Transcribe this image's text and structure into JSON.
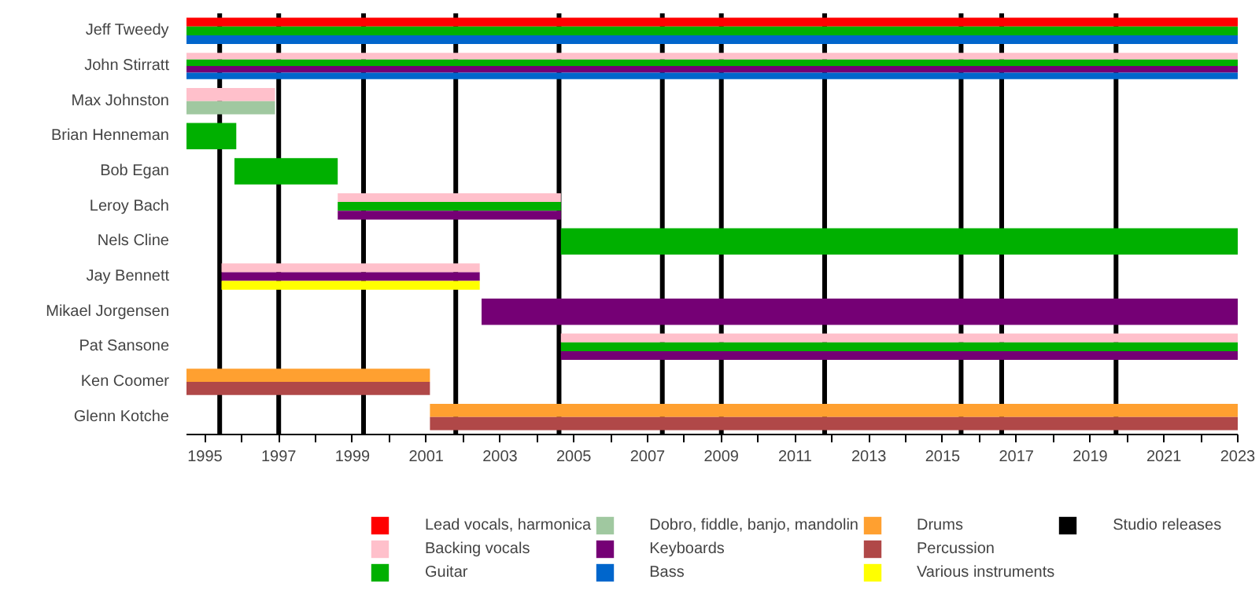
{
  "chart_data": {
    "type": "bar",
    "orientation": "horizontal",
    "categories": [
      "Jeff Tweedy",
      "John Stirratt",
      "Max Johnston",
      "Brian Henneman",
      "Bob Egan",
      "Leroy Bach",
      "Nels Cline",
      "Jay Bennett",
      "Mikael Jorgensen",
      "Pat Sansone",
      "Ken Coomer",
      "Glenn Kotche"
    ],
    "series": [
      {
        "name": "Lead vocals, harmonica",
        "color": "#ff0000",
        "values": [
          28.5,
          null,
          null,
          null,
          null,
          null,
          null,
          null,
          null,
          null,
          null,
          null
        ],
        "base": [
          1994.5,
          null,
          null,
          null,
          null,
          null,
          null,
          null,
          null,
          null,
          null,
          null
        ]
      },
      {
        "name": "Backing vocals",
        "color": "#ffc0cb",
        "values": [
          null,
          28.5,
          2.4,
          null,
          null,
          6.05,
          null,
          7.0,
          null,
          18.35,
          null,
          null
        ],
        "base": [
          null,
          1994.5,
          1994.5,
          null,
          null,
          1998.6,
          null,
          1995.45,
          null,
          2004.65,
          null,
          null
        ]
      },
      {
        "name": "Guitar",
        "color": "#00b000",
        "values": [
          28.5,
          28.5,
          null,
          1.35,
          2.8,
          6.05,
          18.35,
          null,
          null,
          18.35,
          null,
          null
        ],
        "base": [
          1994.5,
          1994.5,
          null,
          1994.5,
          1995.8,
          1998.6,
          2004.65,
          null,
          null,
          2004.65,
          null,
          null
        ]
      },
      {
        "name": "Dobro, fiddle, banjo, mandolin",
        "color": "#a0c8a0",
        "values": [
          null,
          null,
          2.4,
          null,
          null,
          null,
          null,
          null,
          null,
          null,
          null,
          null
        ],
        "base": [
          null,
          null,
          1994.5,
          null,
          null,
          null,
          null,
          null,
          null,
          null,
          null,
          null
        ]
      },
      {
        "name": "Keyboards",
        "color": "#750075",
        "values": [
          null,
          28.5,
          null,
          null,
          null,
          6.05,
          null,
          7.0,
          20.5,
          18.35,
          null,
          null
        ],
        "base": [
          null,
          1994.5,
          null,
          null,
          null,
          1998.6,
          null,
          1995.45,
          2002.5,
          2004.65,
          null,
          null
        ]
      },
      {
        "name": "Bass",
        "color": "#0066cc",
        "values": [
          28.5,
          28.5,
          null,
          null,
          null,
          null,
          null,
          null,
          null,
          null,
          null,
          null
        ],
        "base": [
          1994.5,
          1994.5,
          null,
          null,
          null,
          null,
          null,
          null,
          null,
          null,
          null,
          null
        ]
      },
      {
        "name": "Drums",
        "color": "#ffa030",
        "values": [
          null,
          null,
          null,
          null,
          null,
          null,
          null,
          null,
          null,
          null,
          6.6,
          21.9
        ],
        "base": [
          null,
          null,
          null,
          null,
          null,
          null,
          null,
          null,
          null,
          null,
          1994.5,
          2001.1
        ]
      },
      {
        "name": "Percussion",
        "color": "#b04848",
        "values": [
          null,
          null,
          null,
          null,
          null,
          null,
          null,
          null,
          null,
          null,
          6.6,
          21.9
        ],
        "base": [
          null,
          null,
          null,
          null,
          null,
          null,
          null,
          null,
          null,
          null,
          1994.5,
          2001.1
        ]
      },
      {
        "name": "Various instruments",
        "color": "#ffff00",
        "values": [
          null,
          null,
          null,
          null,
          null,
          null,
          null,
          7.0,
          null,
          null,
          null,
          null
        ],
        "base": [
          null,
          null,
          null,
          null,
          null,
          null,
          null,
          1995.45,
          null,
          null,
          null,
          null
        ]
      }
    ],
    "xlim": [
      1994.5,
      2023
    ],
    "xticks": [
      1995,
      {
        "value": 1996,
        "label": null
      },
      1997,
      {
        "value": 1998,
        "label": null
      },
      1999,
      {
        "value": 2000,
        "label": null
      },
      2001,
      {
        "value": 2002,
        "label": null
      },
      2003,
      {
        "value": 2004,
        "label": null
      },
      2005,
      {
        "value": 2006,
        "label": null
      },
      2007,
      {
        "value": 2008,
        "label": null
      },
      2009,
      {
        "value": 2010,
        "label": null
      },
      2011,
      {
        "value": 2012,
        "label": null
      },
      2013,
      {
        "value": 2014,
        "label": null
      },
      2015,
      {
        "value": 2016,
        "label": null
      },
      2017,
      {
        "value": 2018,
        "label": null
      },
      2019,
      {
        "value": 2020,
        "label": null
      },
      2021,
      {
        "value": 2022,
        "label": null
      },
      2023
    ],
    "ref_lines": [
      {
        "axis": "x",
        "value": 1995.4,
        "label": "Studio releases",
        "color": "#000000"
      },
      {
        "axis": "x",
        "value": 1997.0,
        "label": null,
        "color": "#000000"
      },
      {
        "axis": "x",
        "value": 1999.3,
        "label": null,
        "color": "#000000"
      },
      {
        "axis": "x",
        "value": 2001.8,
        "label": null,
        "color": "#000000"
      },
      {
        "axis": "x",
        "value": 2004.6,
        "label": null,
        "color": "#000000"
      },
      {
        "axis": "x",
        "value": 2007.4,
        "label": null,
        "color": "#000000"
      },
      {
        "axis": "x",
        "value": 2009.0,
        "label": null,
        "color": "#000000"
      },
      {
        "axis": "x",
        "value": 2011.8,
        "label": null,
        "color": "#000000"
      },
      {
        "axis": "x",
        "value": 2015.5,
        "label": null,
        "color": "#000000"
      },
      {
        "axis": "x",
        "value": 2016.6,
        "label": null,
        "color": "#000000"
      },
      {
        "axis": "x",
        "value": 2019.7,
        "label": null,
        "color": "#000000"
      }
    ],
    "grid": false,
    "legend": "bottom"
  }
}
